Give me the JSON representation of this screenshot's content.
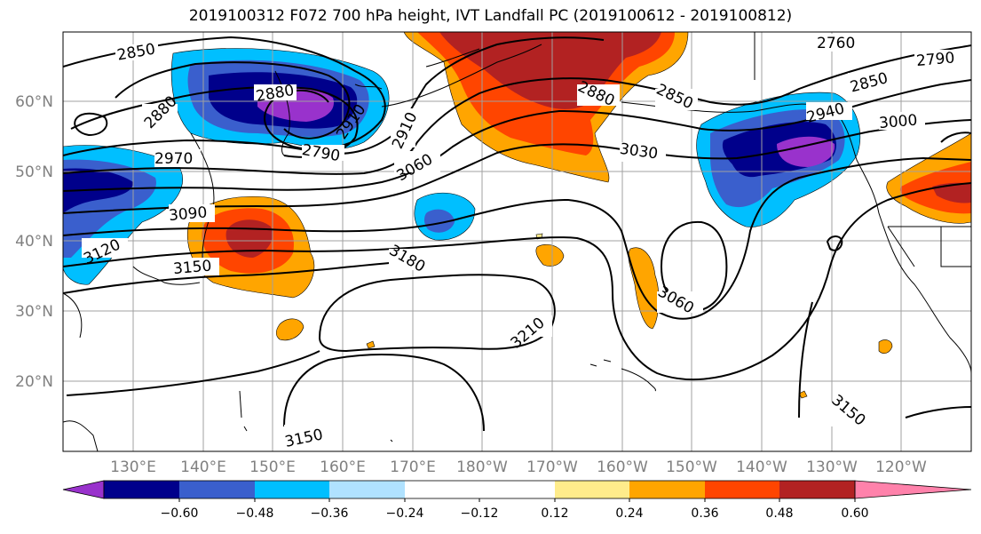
{
  "title": "2019100312 F072 700 hPa height, IVT Landfall PC (2019100612 - 2019100812)",
  "map": {
    "lat_labels": [
      "60°N",
      "50°N",
      "40°N",
      "30°N",
      "20°N"
    ],
    "lon_labels": [
      "130°E",
      "140°E",
      "150°E",
      "160°E",
      "170°E",
      "180°W",
      "170°W",
      "160°W",
      "150°W",
      "140°W",
      "130°W",
      "120°W"
    ],
    "contour_labels": [
      "2850",
      "2880",
      "2880",
      "2910",
      "2790",
      "2910",
      "2880",
      "2850",
      "2760",
      "2790",
      "2850",
      "2940",
      "3000",
      "2970",
      "3030",
      "3060",
      "3090",
      "3120",
      "3150",
      "3180",
      "3210",
      "3060",
      "3150",
      "3150"
    ]
  },
  "colorbar": {
    "ticks": [
      "−0.60",
      "−0.48",
      "−0.36",
      "−0.24",
      "−0.12",
      "0.12",
      "0.24",
      "0.36",
      "0.48",
      "0.60"
    ],
    "colors": [
      "#9932cc",
      "#00008b",
      "#3a5fcd",
      "#00bfff",
      "#b0e2ff",
      "#ffffff",
      "#ffec8b",
      "#ffa500",
      "#ff4500",
      "#b22222",
      "#ff82ab"
    ]
  }
}
